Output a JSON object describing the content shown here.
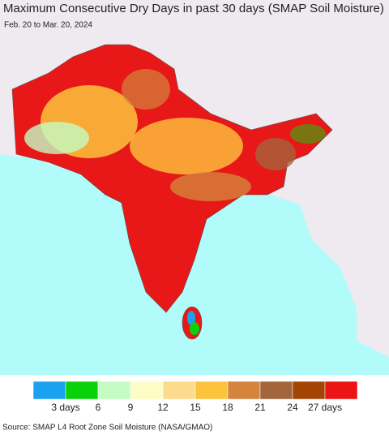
{
  "header": {
    "title": "Maximum Consecutive Dry Days in past 30 days (SMAP Soil Moisture)",
    "subtitle": "Feb. 20 to Mar. 20, 2024"
  },
  "legend": {
    "colors": [
      "#1aa2f0",
      "#0ad20a",
      "#c4fcc4",
      "#fcfcc4",
      "#fcdc8c",
      "#fcc43c",
      "#d4843c",
      "#a4643c",
      "#a44404",
      "#ec1414"
    ],
    "labels": [
      "3 days",
      "6",
      "9",
      "12",
      "15",
      "18",
      "21",
      "24",
      "27 days"
    ]
  },
  "footer": {
    "source": "Source: SMAP L4 Root Zone Soil Moisture (NASA/GMAO)"
  }
}
